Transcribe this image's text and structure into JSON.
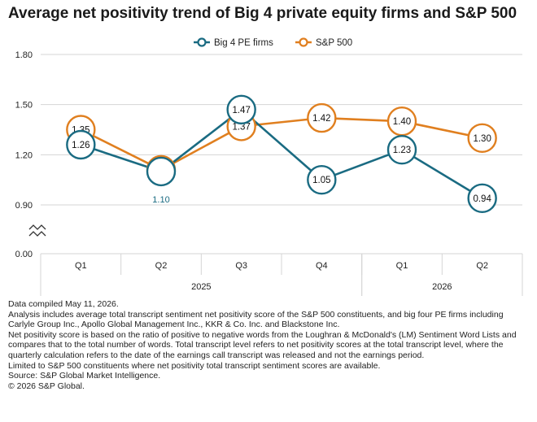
{
  "title": "Average net positivity trend of Big 4 private equity firms and S&P 500",
  "colors": {
    "big4": "#1a6b82",
    "sp500": "#e07f1f",
    "grid": "#d5d5d5",
    "axis": "#999999",
    "text": "#222222"
  },
  "chart_data": {
    "type": "line",
    "title": "Average net positivity trend of Big 4 private equity firms and S&P 500",
    "categories": [
      "Q1",
      "Q2",
      "Q3",
      "Q4",
      "Q1",
      "Q2"
    ],
    "category_groups": [
      {
        "label": "2025",
        "span": [
          0,
          3
        ]
      },
      {
        "label": "2026",
        "span": [
          4,
          5
        ]
      }
    ],
    "yticks": [
      "1.80",
      "1.50",
      "1.20",
      "0.90",
      "0.00"
    ],
    "ylim": [
      0.0,
      1.8
    ],
    "broken_axis": true,
    "grid": true,
    "legend_position": "top-center",
    "series": [
      {
        "name": "Big 4 PE firms",
        "values": [
          1.26,
          1.1,
          1.47,
          1.05,
          1.23,
          0.94
        ],
        "labels": [
          "1.26",
          "1.10",
          "1.47",
          "1.05",
          "1.23",
          "0.94"
        ]
      },
      {
        "name": "S&P 500",
        "values": [
          1.35,
          1.11,
          1.37,
          1.42,
          1.4,
          1.3
        ],
        "labels": [
          "1.35",
          "1.11",
          "1.37",
          "1.42",
          "1.40",
          "1.30"
        ]
      }
    ]
  },
  "notes": [
    "Data compiled May 11, 2026.",
    "Analysis includes average total transcript sentiment net positivity score of the S&P 500 constituents, and big four PE firms including Carlyle Group Inc., Apollo Global Management Inc., KKR & Co. Inc. and Blackstone Inc.",
    "Net positivity score is based on the ratio of positive to negative words from the Loughran & McDonald's (LM) Sentiment Word Lists and compares that to the total number of words. Total transcript level refers to net positivity scores at the total transcript level,  where the quarterly calculation refers to the date of the earnings call transcript was released and not the earnings period.",
    "Limited to S&P 500 constituents where net positivity total transcript sentiment scores are available.",
    "Source: S&P Global Market Intelligence.",
    "© 2026 S&P Global."
  ]
}
